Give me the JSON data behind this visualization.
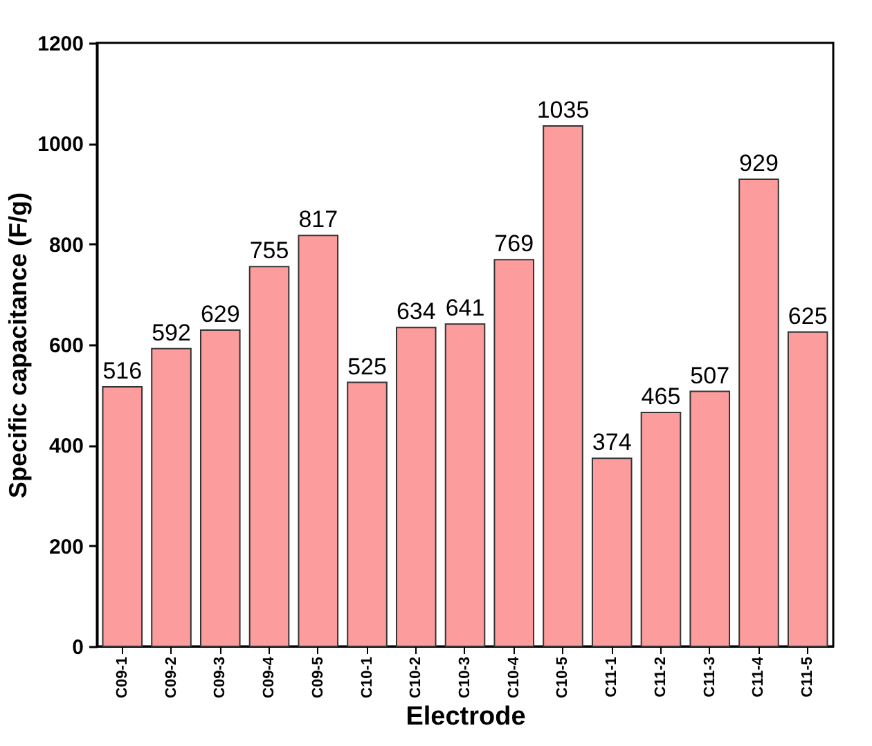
{
  "chart_data": {
    "type": "bar",
    "xlabel": "Electrode",
    "ylabel": "Specific capacitance (F/g)",
    "categories": [
      "C09-1",
      "C09-2",
      "C09-3",
      "C09-4",
      "C09-5",
      "C10-1",
      "C10-2",
      "C10-3",
      "C10-4",
      "C10-5",
      "C11-1",
      "C11-2",
      "C11-3",
      "C11-4",
      "C11-5"
    ],
    "values": [
      516,
      592,
      629,
      755,
      817,
      525,
      634,
      641,
      769,
      1035,
      374,
      465,
      507,
      929,
      625
    ],
    "color": "#fc9c9c",
    "ylim": [
      0,
      1200
    ],
    "yticks": [
      0,
      200,
      400,
      600,
      800,
      1000,
      1200
    ],
    "data_labels": true
  }
}
